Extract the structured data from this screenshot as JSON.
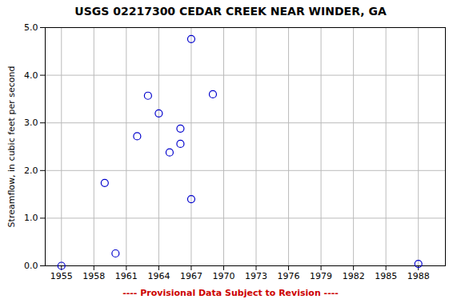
{
  "chart_data": {
    "type": "scatter",
    "title": "USGS 02217300 CEDAR CREEK NEAR WINDER, GA",
    "ylabel": "Streamflow, in cubic feet per second",
    "x": [
      1955,
      1959,
      1960,
      1962,
      1963,
      1964,
      1965,
      1966,
      1966,
      1967,
      1967,
      1969,
      1988
    ],
    "values": [
      0.0,
      1.74,
      0.26,
      2.72,
      3.57,
      3.2,
      2.38,
      2.88,
      2.56,
      4.76,
      1.4,
      3.6,
      0.04
    ],
    "color": "#0000cc",
    "marker": "circle",
    "xlim": [
      1953.5,
      1990.5
    ],
    "ylim": [
      0.0,
      5.0
    ],
    "xticks": [
      1955,
      1958,
      1961,
      1964,
      1967,
      1970,
      1973,
      1976,
      1979,
      1982,
      1985,
      1988
    ],
    "yticks": [
      {
        "value": 0.0,
        "label": "0.0"
      },
      {
        "value": 1.0,
        "label": "1.0"
      },
      {
        "value": 2.0,
        "label": "2.0"
      },
      {
        "value": 3.0,
        "label": "3.0"
      },
      {
        "value": 4.0,
        "label": "4.0"
      },
      {
        "value": 5.0,
        "label": "5.0"
      }
    ],
    "grid": true,
    "annotations": [
      {
        "text": "---- Provisional Data Subject to Revision ----",
        "color": "#cc0000"
      }
    ]
  }
}
